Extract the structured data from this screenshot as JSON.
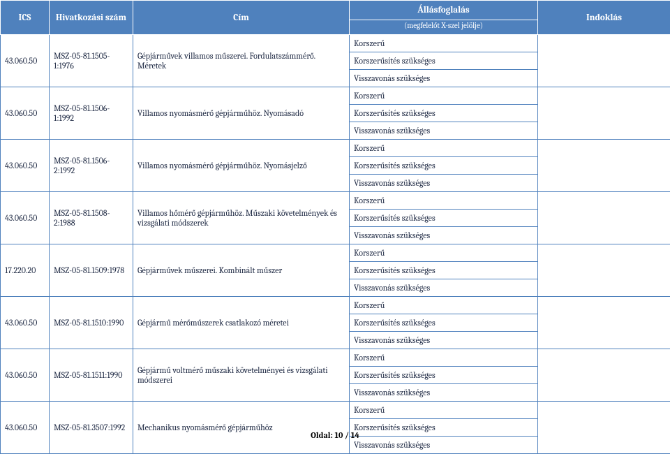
{
  "header": {
    "ics": "ICS",
    "ref": "Hivatkozási szám",
    "title": "Cím",
    "stance": "Állásfoglalás",
    "stance_sub": "(megfelelőt X-szel jelölje)",
    "reason": "Indoklás"
  },
  "stance_options": [
    "Korszerű",
    "Korszerűsítés szükséges",
    "Visszavonás szükséges"
  ],
  "rows": [
    {
      "ics": "43.060.50",
      "ref": "MSZ-05-81.1505-1:1976",
      "title": "Gépjárművek villamos műszerei. Fordulatszámmérő. Méretek"
    },
    {
      "ics": "43.060.50",
      "ref": "MSZ-05-81.1506-1:1992",
      "title": "Villamos nyomásmérő gépjárműhöz. Nyomásadó"
    },
    {
      "ics": "43.060.50",
      "ref": "MSZ-05-81.1506-2:1992",
      "title": "Villamos nyomásmérő gépjárműhöz. Nyomásjelző"
    },
    {
      "ics": "43.060.50",
      "ref": "MSZ-05-81.1508-2:1988",
      "title": "Villamos hőmérő gépjárműhöz. Műszaki követelmények és vizsgálati módszerek"
    },
    {
      "ics": "17.220.20",
      "ref": "MSZ-05-81.1509:1978",
      "title": "Gépjárművek műszerei. Kombinált műszer"
    },
    {
      "ics": "43.060.50",
      "ref": "MSZ-05-81.1510:1990",
      "title": "Gépjármű mérőműszerek csatlakozó méretei"
    },
    {
      "ics": "43.060.50",
      "ref": "MSZ-05-81.1511:1990",
      "title": "Gépjármű voltmérő műszaki követelményei és vizsgálati módszerei"
    },
    {
      "ics": "43.060.50",
      "ref": "MSZ-05-81.3507:1992",
      "title": "Mechanikus nyomásmérő gépjárműhöz"
    }
  ],
  "footer": {
    "label": "Oldal:",
    "page": "10",
    "sep": "/",
    "total": "14"
  },
  "colors": {
    "header_bg": "#4f81bd",
    "header_fg": "#ffffff",
    "border": "#4f81bd",
    "text": "#1f2a44"
  }
}
